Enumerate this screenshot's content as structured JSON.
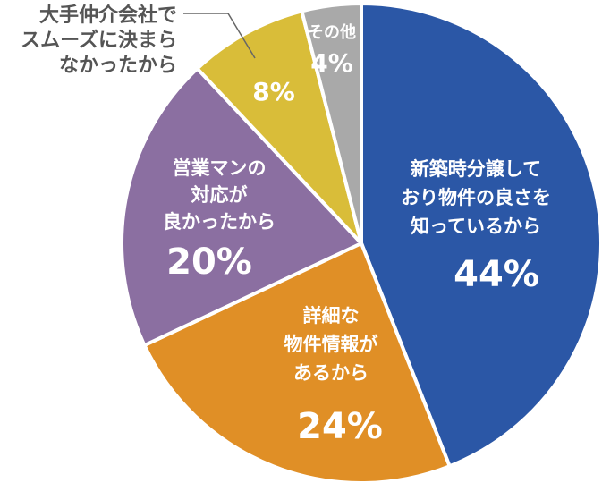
{
  "chart_data": {
    "type": "pie",
    "slices": [
      {
        "label_lines": [
          "新築時分譲して",
          "おり物件の良さを",
          "知っているから"
        ],
        "value": 44,
        "value_label": "44%",
        "color": "#2b57a6"
      },
      {
        "label_lines": [
          "詳細な",
          "物件情報が",
          "あるから"
        ],
        "value": 24,
        "value_label": "24%",
        "color": "#e08f26"
      },
      {
        "label_lines": [
          "営業マンの",
          "対応が",
          "良かったから"
        ],
        "value": 20,
        "value_label": "20%",
        "color": "#8b6fa1"
      },
      {
        "label_lines": [
          "大手仲介会社で",
          "スムーズに決まら",
          "なかったから"
        ],
        "value": 8,
        "value_label": "8%",
        "color": "#d9bd39"
      },
      {
        "label_lines": [
          "その他"
        ],
        "value": 4,
        "value_label": "4%",
        "color": "#a9a9a9"
      }
    ]
  }
}
